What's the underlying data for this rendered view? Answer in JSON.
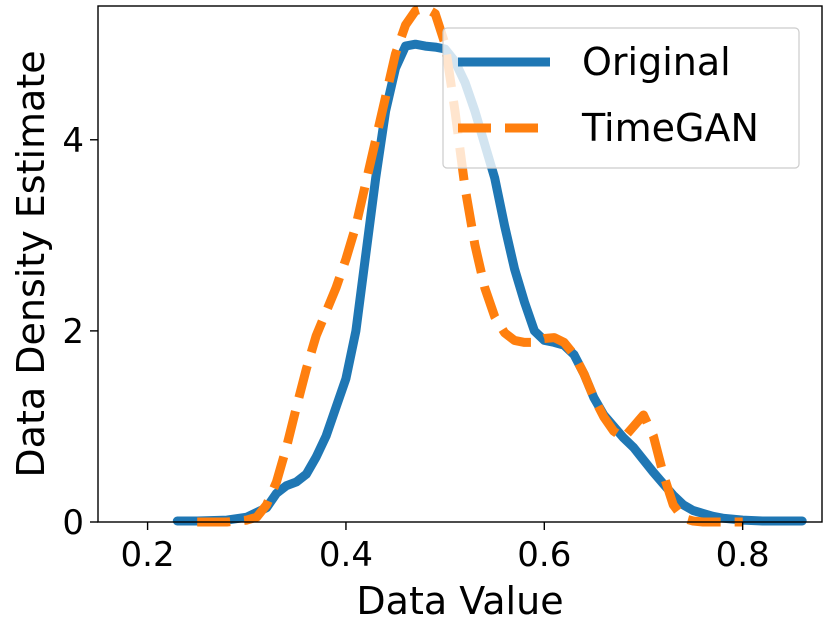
{
  "chart_data": {
    "type": "line",
    "title": "",
    "xlabel": "Data Value",
    "ylabel": "Data Density Estimate",
    "xlim": [
      0.15,
      0.88
    ],
    "ylim": [
      0,
      5.4
    ],
    "xticks": [
      0.2,
      0.4,
      0.6,
      0.8
    ],
    "xtick_labels": [
      "0.2",
      "0.4",
      "0.6",
      "0.8"
    ],
    "yticks": [
      0,
      2,
      4
    ],
    "ytick_labels": [
      "0",
      "2",
      "4"
    ],
    "grid": false,
    "legend_position": "top-right",
    "series": [
      {
        "name": "Original",
        "color": "#1f77b4",
        "style": "solid",
        "x": [
          0.23,
          0.25,
          0.28,
          0.3,
          0.32,
          0.33,
          0.34,
          0.35,
          0.36,
          0.37,
          0.38,
          0.39,
          0.4,
          0.41,
          0.42,
          0.43,
          0.44,
          0.45,
          0.46,
          0.47,
          0.48,
          0.49,
          0.5,
          0.51,
          0.52,
          0.53,
          0.54,
          0.55,
          0.56,
          0.57,
          0.58,
          0.59,
          0.6,
          0.61,
          0.62,
          0.63,
          0.64,
          0.65,
          0.66,
          0.67,
          0.68,
          0.69,
          0.7,
          0.71,
          0.72,
          0.73,
          0.74,
          0.75,
          0.76,
          0.77,
          0.78,
          0.8,
          0.82,
          0.84,
          0.86
        ],
        "y": [
          0.01,
          0.01,
          0.02,
          0.05,
          0.15,
          0.3,
          0.38,
          0.42,
          0.5,
          0.68,
          0.9,
          1.2,
          1.5,
          2.0,
          2.8,
          3.6,
          4.3,
          4.75,
          4.98,
          5.0,
          4.98,
          4.97,
          4.95,
          4.82,
          4.6,
          4.3,
          3.95,
          3.6,
          3.1,
          2.65,
          2.3,
          2.0,
          1.9,
          1.88,
          1.85,
          1.75,
          1.55,
          1.3,
          1.12,
          1.0,
          0.88,
          0.78,
          0.65,
          0.52,
          0.4,
          0.28,
          0.18,
          0.12,
          0.09,
          0.06,
          0.04,
          0.02,
          0.01,
          0.01,
          0.01
        ]
      },
      {
        "name": "TimeGAN",
        "color": "#ff7f0e",
        "style": "dashed",
        "x": [
          0.25,
          0.28,
          0.3,
          0.31,
          0.32,
          0.33,
          0.34,
          0.35,
          0.36,
          0.37,
          0.38,
          0.39,
          0.4,
          0.41,
          0.42,
          0.43,
          0.44,
          0.45,
          0.46,
          0.47,
          0.48,
          0.49,
          0.5,
          0.51,
          0.52,
          0.53,
          0.54,
          0.55,
          0.56,
          0.57,
          0.58,
          0.59,
          0.6,
          0.61,
          0.62,
          0.63,
          0.64,
          0.65,
          0.66,
          0.67,
          0.68,
          0.69,
          0.7,
          0.71,
          0.72,
          0.73,
          0.74,
          0.75,
          0.76,
          0.78,
          0.8
        ],
        "y": [
          0.0,
          0.0,
          0.02,
          0.05,
          0.18,
          0.42,
          0.78,
          1.2,
          1.6,
          1.95,
          2.2,
          2.45,
          2.75,
          3.1,
          3.55,
          4.0,
          4.45,
          4.9,
          5.2,
          5.35,
          5.38,
          5.32,
          5.0,
          4.3,
          3.5,
          2.9,
          2.45,
          2.15,
          1.98,
          1.9,
          1.88,
          1.88,
          1.92,
          1.93,
          1.88,
          1.75,
          1.55,
          1.3,
          1.1,
          0.95,
          0.88,
          1.0,
          1.12,
          0.9,
          0.5,
          0.18,
          0.04,
          0.01,
          0.0,
          0.0,
          0.0
        ]
      }
    ]
  }
}
